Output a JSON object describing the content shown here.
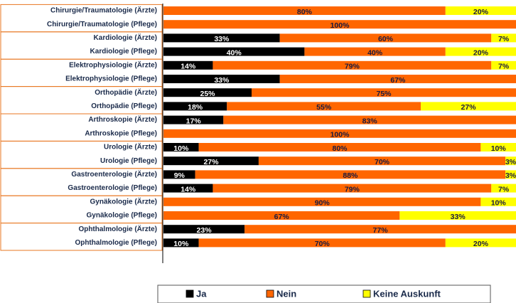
{
  "chart_data": {
    "type": "stacked-bar-horizontal",
    "categories": [
      "Chirurgie/Traumatologie (Ärzte)",
      "Chirurgie/Traumatologie (Pflege)",
      "Kardiologie (Ärzte)",
      "Kardiologie (Pflege)",
      "Elektrophysiologie (Ärzte)",
      "Elektrophysiologie (Pflege)",
      "Orthopädie (Ärzte)",
      "Orthopädie (Pflege)",
      "Arthroskopie (Ärzte)",
      "Arthroskopie (Pflege)",
      "Urologie (Ärzte)",
      "Urologie (Pflege)",
      "Gastroenterologie (Ärzte)",
      "Gastroenterologie (Pflege)",
      "Gynäkologie (Ärzte)",
      "Gynäkologie (Pflege)",
      "Ophthalmologie (Ärzte)",
      "Ophthalmologie (Pflege)"
    ],
    "series": [
      {
        "name": "Ja",
        "color": "#000000",
        "label_color": "#ffffff",
        "values": [
          0,
          0,
          33,
          40,
          14,
          33,
          25,
          18,
          17,
          0,
          10,
          27,
          9,
          14,
          0,
          0,
          23,
          10
        ],
        "value_labels": [
          null,
          null,
          "33%",
          "40%",
          "14%",
          "33%",
          "25%",
          "18%",
          "17%",
          null,
          "10%",
          "27%",
          "9%",
          "14%",
          null,
          null,
          "23%",
          "10%"
        ]
      },
      {
        "name": "Nein",
        "color": "#ff6600",
        "label_color": "#1a1a40",
        "values": [
          80,
          100,
          60,
          40,
          79,
          67,
          75,
          55,
          83,
          100,
          80,
          70,
          88,
          79,
          90,
          67,
          77,
          70
        ],
        "value_labels": [
          "80%",
          "100%",
          "60%",
          "40%",
          "79%",
          "67%",
          "75%",
          "55%",
          "83%",
          "100%",
          "80%",
          "70%",
          "88%",
          "79%",
          "90%",
          "67%",
          "77%",
          "70%"
        ]
      },
      {
        "name": "Keine Auskunft",
        "color": "#ffff00",
        "label_color": "#1a1a40",
        "values": [
          20,
          0,
          7,
          20,
          7,
          0,
          0,
          27,
          0,
          0,
          10,
          3,
          3,
          7,
          10,
          33,
          0,
          20
        ],
        "value_labels": [
          "20%",
          null,
          "7%",
          "20%",
          "7%",
          null,
          null,
          "27%",
          null,
          null,
          "10%",
          "3%",
          "3%",
          "7%",
          "10%",
          "33%",
          null,
          "20%"
        ]
      }
    ],
    "xlim": [
      0,
      100
    ]
  }
}
